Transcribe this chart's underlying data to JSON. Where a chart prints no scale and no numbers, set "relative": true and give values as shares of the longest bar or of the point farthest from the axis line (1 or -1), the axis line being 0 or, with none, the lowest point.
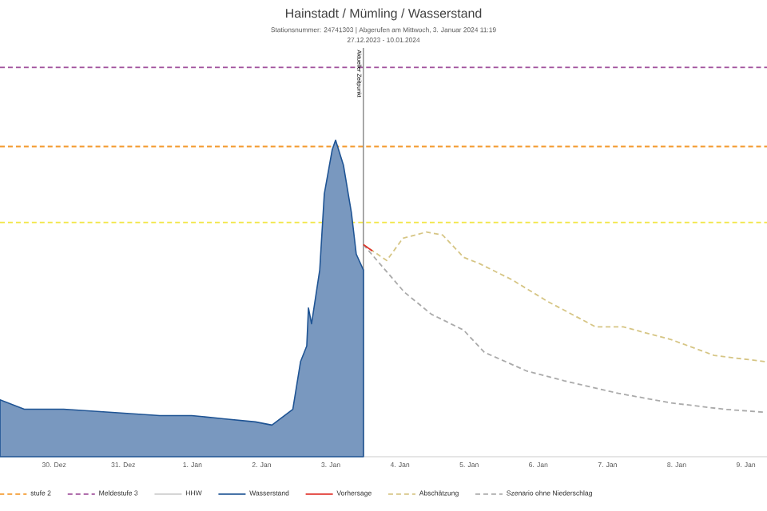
{
  "chart_data": {
    "type": "line",
    "title": "Hainstadt / Mümling / Wasserstand",
    "subtitle": "Stationsnummer: 24741303 | Abgerufen am Mittwoch, 3. Januar 2024 11:19",
    "annotations": [
      "27.12.2023 - 10.01.2024"
    ],
    "relative": true,
    "xlim": [
      "2023-12-29T05:15",
      "2024-01-09T07:20"
    ],
    "xticks": [
      {
        "value": "2023-12-30",
        "label": "30. Dez"
      },
      {
        "value": "2023-12-31",
        "label": "31. Dez"
      },
      {
        "value": "2024-01-01",
        "label": "1. Jan"
      },
      {
        "value": "2024-01-02",
        "label": "2. Jan"
      },
      {
        "value": "2024-01-03",
        "label": "3. Jan"
      },
      {
        "value": "2024-01-04",
        "label": "4. Jan"
      },
      {
        "value": "2024-01-05",
        "label": "5. Jan"
      },
      {
        "value": "2024-01-06",
        "label": "6. Jan"
      },
      {
        "value": "2024-01-07",
        "label": "7. Jan"
      },
      {
        "value": "2024-01-08",
        "label": "8. Jan"
      },
      {
        "value": "2024-01-09",
        "label": "9. Jan"
      }
    ],
    "legend": "bottom",
    "ref_lines": [
      {
        "axis": "y",
        "value": 0.74,
        "color": "#f2e646",
        "line_style": "dashed"
      },
      {
        "axis": "y",
        "value": 0.98,
        "label": "stufe 2",
        "color": "#f39a2e",
        "line_style": "dashed"
      },
      {
        "axis": "y",
        "value": 1.23,
        "label": "Meldestufe 3",
        "color": "#a0509b",
        "line_style": "dashed"
      },
      {
        "axis": "x",
        "value": "2024-01-03T11:19",
        "label": "Aktueller Zeitpunkt",
        "color": "#555555",
        "line_style": "solid"
      }
    ],
    "series": [
      {
        "name": "HHW",
        "color": "#cccccc",
        "line_style": "solid"
      },
      {
        "name": "Wasserstand",
        "color": "#1f5494",
        "type": "area",
        "line_style": "solid",
        "x": [
          "2023-12-29T05:15",
          "2023-12-29T13:40",
          "2023-12-30T03:20",
          "2023-12-30T20:10",
          "2023-12-31T12:40",
          "2023-12-31T23:45",
          "2024-01-01T10:50",
          "2024-01-01T21:50",
          "2024-01-02T03:35",
          "2024-01-02T10:50",
          "2024-01-02T13:30",
          "2024-01-02T15:40",
          "2024-01-02T16:15",
          "2024-01-02T17:20",
          "2024-01-02T20:10",
          "2024-01-02T21:45",
          "2024-01-03T00:30",
          "2024-01-03T01:40",
          "2024-01-03T04:25",
          "2024-01-03T07:10",
          "2024-01-03T08:50",
          "2024-01-03T11:19"
        ],
        "values": [
          0.18,
          0.15,
          0.15,
          0.14,
          0.13,
          0.13,
          0.12,
          0.11,
          0.1,
          0.15,
          0.3,
          0.35,
          0.47,
          0.42,
          0.59,
          0.83,
          0.97,
          1.0,
          0.92,
          0.77,
          0.64,
          0.59
        ]
      },
      {
        "name": "Vorhersage",
        "color": "#e0302a",
        "line_style": "solid",
        "x": [
          "2024-01-03T11:19",
          "2024-01-03T14:25"
        ],
        "values": [
          0.67,
          0.65
        ]
      },
      {
        "name": "Abschätzung",
        "color": "#d6c584",
        "line_style": "dashed",
        "x": [
          "2024-01-03T11:19",
          "2024-01-03T19:25",
          "2024-01-04T01:00",
          "2024-01-04T09:15",
          "2024-01-04T14:50",
          "2024-01-04T22:05",
          "2024-01-05T03:35",
          "2024-01-05T14:40",
          "2024-01-06T03:20",
          "2024-01-06T19:55",
          "2024-01-07T05:30",
          "2024-01-07T22:05",
          "2024-01-08T13:00",
          "2024-01-09T07:00"
        ],
        "values": [
          0.67,
          0.62,
          0.69,
          0.71,
          0.7,
          0.63,
          0.61,
          0.56,
          0.49,
          0.41,
          0.41,
          0.37,
          0.32,
          0.3
        ]
      },
      {
        "name": "Szenario ohne Niederschlag",
        "color": "#aaaaaa",
        "line_style": "dashed",
        "x": [
          "2024-01-03T11:19",
          "2024-01-04T01:30",
          "2024-01-04T10:55",
          "2024-01-04T22:05",
          "2024-01-05T05:15",
          "2024-01-05T20:10",
          "2024-01-06T08:55",
          "2024-01-07T03:50",
          "2024-01-07T22:05",
          "2024-01-08T16:20",
          "2024-01-09T07:00"
        ],
        "values": [
          0.67,
          0.52,
          0.45,
          0.4,
          0.33,
          0.27,
          0.24,
          0.2,
          0.17,
          0.15,
          0.14
        ]
      }
    ]
  }
}
